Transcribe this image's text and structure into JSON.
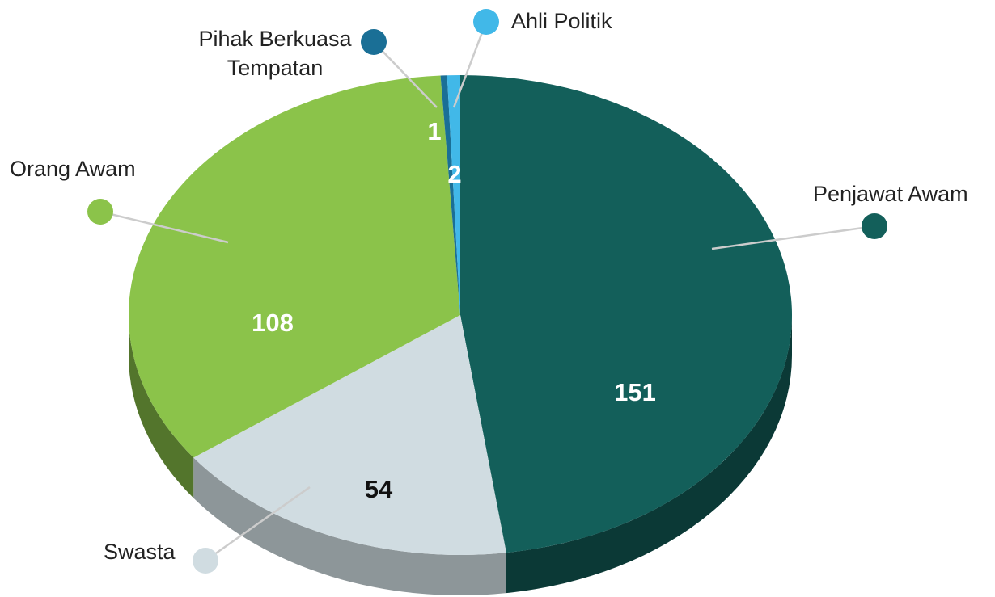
{
  "chart_data": {
    "type": "pie",
    "categories": [
      "Penjawat Awam",
      "Swasta",
      "Orang Awam",
      "Pihak Berkuasa Tempatan",
      "Ahli Politik"
    ],
    "values": [
      151,
      54,
      108,
      1,
      2
    ],
    "colors": [
      "#135f5a",
      "#d0dce1",
      "#8bc34a",
      "#1a6f96",
      "#41b8e8"
    ]
  }
}
